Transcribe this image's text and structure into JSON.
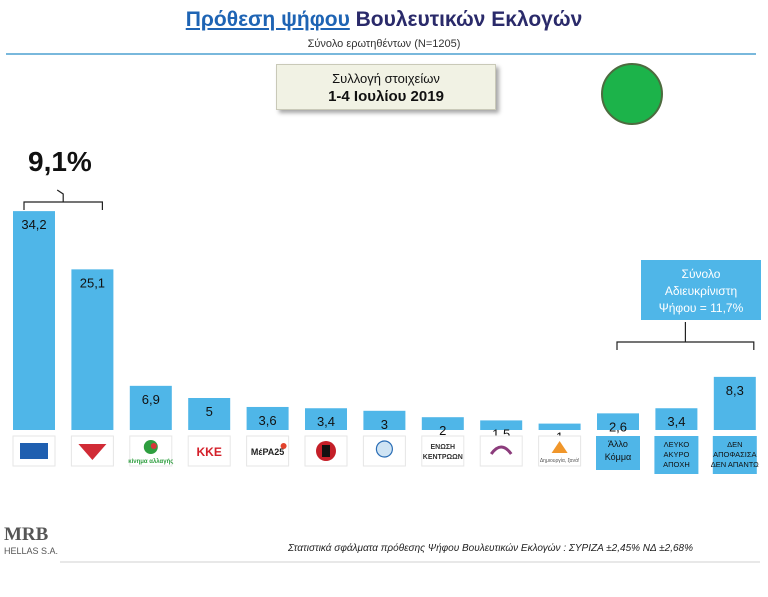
{
  "header": {
    "title_part1": "Πρόθεση ψήφου",
    "title_part2": "Βουλευτικών Εκλογών",
    "subtitle": "Σύνολο ερωτηθέντων (Ν=1205)"
  },
  "collection": {
    "line1": "Συλλογή στοιχείων",
    "line2": "1-4 Ιουλίου 2019"
  },
  "colors": {
    "bar": "#4fb6e8",
    "accent": "#1cb34a",
    "rule": "#79b8dc"
  },
  "annotation": {
    "gap_label": "9,1%",
    "undecided_line1": "Σύνολο",
    "undecided_line2": "Αδιευκρίνιστη",
    "undecided_line3": "Ψήφου = 11,7%"
  },
  "chart_data": {
    "type": "bar",
    "categories": [
      "ΝΔ",
      "ΣΥΡΙΖΑ",
      "Κίνημα Αλλαγής",
      "ΚΚΕ",
      "ΜέΡΑ25",
      "Χρυσή Αυγή",
      "Ελληνική Λύση",
      "Ένωση Κεντρώων",
      "Πλεύση Ελευθερίας",
      "Δημιουργία, ξανά!",
      "Άλλο Κόμμα",
      "ΛΕΥΚΟ ΑΚΥΡΟ ΑΠΟΧΗ",
      "ΔΕΝ ΑΠΟΦΑΣΙΣΑ ΔΕΝ ΑΠΑΝΤΩ"
    ],
    "values": [
      34.2,
      25.1,
      6.9,
      5,
      3.6,
      3.4,
      3,
      2,
      1.5,
      1,
      2.6,
      3.4,
      8.3
    ],
    "value_labels": [
      "34,2",
      "25,1",
      "6,9",
      "5",
      "3,6",
      "3,4",
      "3",
      "2",
      "1,5",
      "1",
      "2,6",
      "3,4",
      "8,3"
    ],
    "text_tick_labels": [
      {
        "index": 10,
        "lines": [
          "Άλλο",
          "Κόμμα"
        ]
      },
      {
        "index": 11,
        "lines": [
          "ΛΕΥΚΟ",
          "ΑΚΥΡΟ",
          "ΑΠΟΧΗ"
        ]
      },
      {
        "index": 12,
        "lines": [
          "ΔΕΝ",
          "ΑΠΟΦΑΣΙΣΑ",
          "ΔΕΝ ΑΠΑΝΤΩ"
        ]
      }
    ],
    "logo_icons": [
      "nd-logo-icon",
      "syriza-logo-icon",
      "kinal-logo-icon",
      "kke-logo-icon",
      "mera25-logo-icon",
      "golden-dawn-logo-icon",
      "elliniki-lysi-logo-icon",
      "enosi-kentroon-logo-icon",
      "plefsi-logo-icon",
      "dimiourgia-xana-logo-icon"
    ],
    "logo_texts": {
      "kke": "ΚΚΕ",
      "mera25": "ΜέΡΑ25",
      "enosi_kentroon": "ΕΝΩΣΗ ΚΕΝΤΡΩΩΝ",
      "kinal": "κίνημα αλλαγής",
      "dimiourgia": "Δημιουργία, ξανά!"
    },
    "title": "Πρόθεση ψήφου Βουλευτικών Εκλογών",
    "xlabel": "",
    "ylabel": "",
    "ylim": [
      0,
      40
    ],
    "grid": false,
    "legend": "none"
  },
  "footer": {
    "note": "Στατιστικά σφάλματα πρόθεσης Ψήφου Βουλευτικών Εκλογών : ΣΥΡΙΖΑ ±2,45% ΝΔ ±2,68%",
    "brand": "MRB",
    "brand_sub": "HELLAS S.A."
  }
}
